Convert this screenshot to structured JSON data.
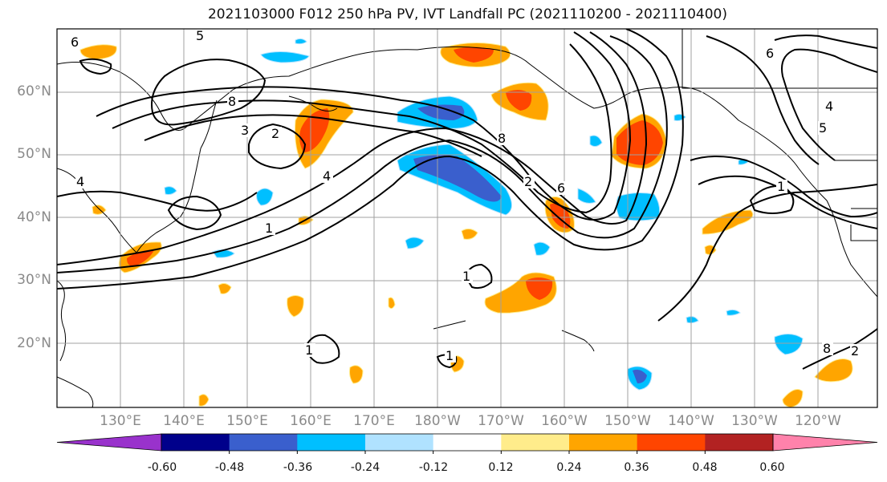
{
  "title": "2021103000 F012 250 hPa PV, IVT Landfall PC (2021110200 - 2021110400)",
  "map": {
    "lat_labels": [
      "60°N",
      "50°N",
      "40°N",
      "30°N",
      "20°N"
    ],
    "lon_labels": [
      "130°E",
      "140°E",
      "150°E",
      "160°E",
      "170°E",
      "180°W",
      "170°W",
      "160°W",
      "150°W",
      "140°W",
      "130°W",
      "120°W"
    ],
    "contour_labels": [
      "5",
      "6",
      "8",
      "3",
      "2",
      "4",
      "4",
      "5",
      "6",
      "2",
      "1",
      "1",
      "1",
      "1",
      "2",
      "8",
      "6",
      "8",
      "4",
      "1"
    ]
  },
  "colorbar": {
    "colors": [
      "#9932cc",
      "#00008b",
      "#3a5fcd",
      "#00bfff",
      "#b0e2ff",
      "#ffffff",
      "#ffec8b",
      "#ffa500",
      "#ff4500",
      "#b22222",
      "#ff82ab"
    ],
    "tick_labels": [
      "-0.60",
      "-0.48",
      "-0.36",
      "-0.24",
      "-0.12",
      "0.12",
      "0.24",
      "0.36",
      "0.48",
      "0.60"
    ]
  },
  "colors": {
    "land_outline": "#000000",
    "grid": "#a0a0a0",
    "contour": "#000000"
  }
}
